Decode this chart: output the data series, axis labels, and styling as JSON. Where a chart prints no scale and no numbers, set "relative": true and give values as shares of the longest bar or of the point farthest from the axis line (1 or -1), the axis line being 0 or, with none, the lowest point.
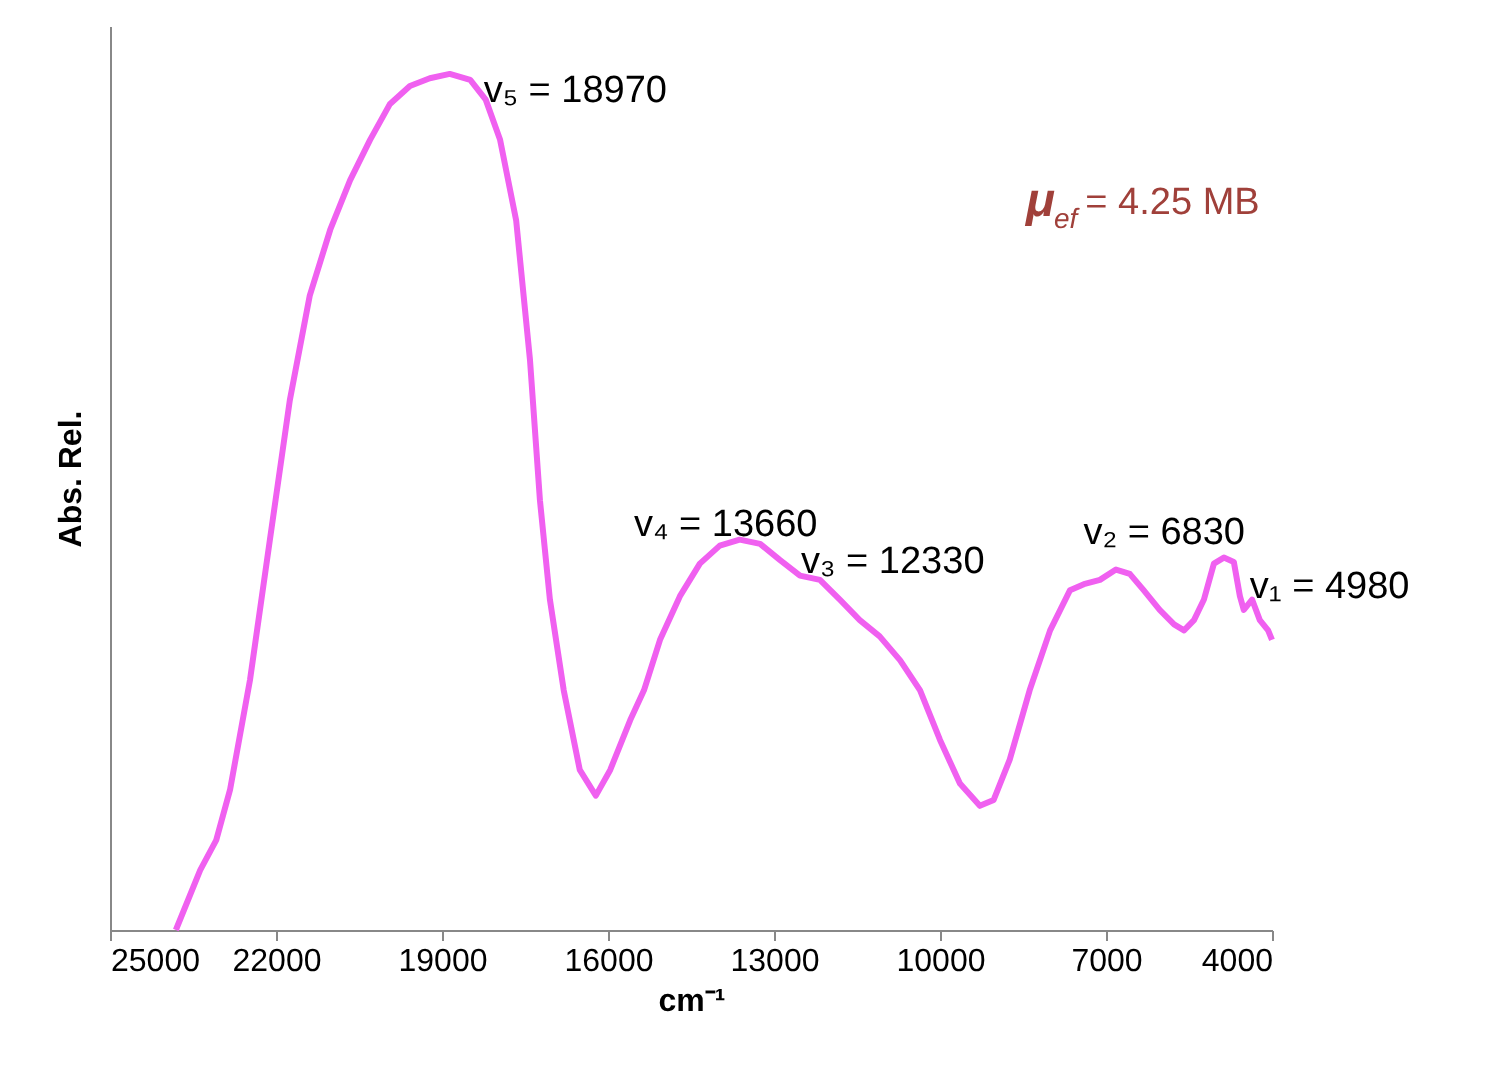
{
  "chart_data": {
    "type": "line",
    "relative": true,
    "xlabel": "cm⁻¹",
    "ylabel": "Abs. Rel.",
    "xlim": [
      25000,
      4000
    ],
    "xticks": [
      25000,
      22000,
      19000,
      16000,
      13000,
      10000,
      7000,
      4000
    ],
    "grid": false,
    "series": [
      {
        "color": "#f060f0",
        "x": [
          23810,
          23370,
          23080,
          22830,
          22470,
          22110,
          21750,
          21390,
          21020,
          20660,
          20300,
          19940,
          19580,
          19220,
          18860,
          18490,
          18210,
          17950,
          17660,
          17410,
          17230,
          17050,
          16800,
          16510,
          16220,
          15960,
          15600,
          15350,
          15060,
          14700,
          14340,
          13980,
          13620,
          13250,
          12890,
          12530,
          12170,
          11810,
          11450,
          11090,
          10720,
          10360,
          10000,
          9640,
          9280,
          9030,
          8740,
          8380,
          8010,
          7650,
          7400,
          7110,
          6820,
          6570,
          6320,
          6030,
          5770,
          5590,
          5410,
          5230,
          5050,
          4870,
          4690,
          4580,
          4510,
          4360,
          4220,
          4070,
          4000
        ],
        "values": [
          0,
          0.07,
          0.105,
          0.164,
          0.292,
          0.456,
          0.619,
          0.741,
          0.818,
          0.876,
          0.923,
          0.965,
          0.986,
          0.995,
          1,
          0.993,
          0.97,
          0.923,
          0.829,
          0.666,
          0.502,
          0.386,
          0.28,
          0.187,
          0.157,
          0.187,
          0.245,
          0.28,
          0.339,
          0.39,
          0.428,
          0.449,
          0.456,
          0.451,
          0.432,
          0.414,
          0.409,
          0.386,
          0.362,
          0.343,
          0.315,
          0.28,
          0.222,
          0.171,
          0.145,
          0.152,
          0.199,
          0.28,
          0.35,
          0.397,
          0.404,
          0.409,
          0.421,
          0.416,
          0.397,
          0.374,
          0.357,
          0.35,
          0.362,
          0.386,
          0.428,
          0.435,
          0.43,
          0.39,
          0.374,
          0.386,
          0.362,
          0.35,
          0.339
        ]
      }
    ],
    "annotations": [
      {
        "text": "v₅ = 18970",
        "x": 18970,
        "y": 1
      },
      {
        "text": "v₄ = 13660",
        "x": 13660,
        "y": 0.456
      },
      {
        "text": "v₃ = 12330",
        "x": 12330,
        "y": 0.41
      },
      {
        "text": "v₂ = 6830",
        "x": 6830,
        "y": 0.421
      },
      {
        "text": "v₁ = 4980",
        "x": 4980,
        "y": 0.43
      },
      "μ$_{ef}$ = 4.25 MB"
    ]
  }
}
